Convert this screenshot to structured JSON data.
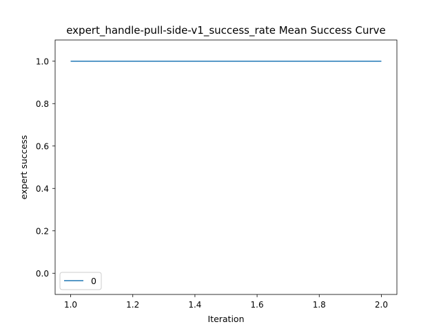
{
  "chart_data": {
    "type": "line",
    "title": "expert_handle-pull-side-v1_success_rate Mean Success Curve",
    "xlabel": "Iteration",
    "ylabel": "expert success",
    "xlim": [
      0.95,
      2.05
    ],
    "ylim": [
      -0.1,
      1.1
    ],
    "xticks": [
      1.0,
      1.2,
      1.4,
      1.6,
      1.8,
      2.0
    ],
    "xtick_labels": [
      "1.0",
      "1.2",
      "1.4",
      "1.6",
      "1.8",
      "2.0"
    ],
    "yticks": [
      0.0,
      0.2,
      0.4,
      0.6,
      0.8,
      1.0
    ],
    "ytick_labels": [
      "0.0",
      "0.2",
      "0.4",
      "0.6",
      "0.8",
      "1.0"
    ],
    "grid": false,
    "legend": {
      "position": "lower-left"
    },
    "series": [
      {
        "name": "0",
        "color": "#1f77b4",
        "x": [
          1.0,
          2.0
        ],
        "y": [
          1.0,
          1.0
        ]
      }
    ]
  }
}
